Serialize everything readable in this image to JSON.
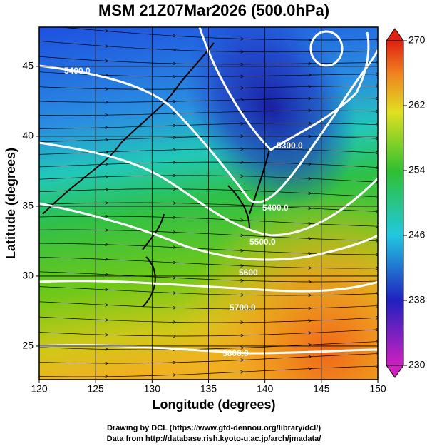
{
  "chart_data": {
    "type": "map",
    "title": "MSM 21Z07Mar2026 (500.0hPa)",
    "x_label": "Longitude (degrees)",
    "y_label": "Latitude  (degrees)",
    "xlim": [
      120,
      150
    ],
    "xticks": [
      120,
      125,
      130,
      135,
      140,
      145,
      150
    ],
    "ylim": [
      22.6,
      47.8
    ],
    "yticks": [
      25,
      30,
      35,
      40,
      45
    ],
    "grid": true,
    "colorbar": {
      "lim": [
        230,
        270
      ],
      "ticks": [
        230,
        238,
        246,
        254,
        262,
        270
      ]
    },
    "contour_labels": [
      "5400.0",
      "5300.0",
      "5400.0",
      "5500.0",
      "5600",
      "5700.0",
      "5800.0"
    ],
    "footer": [
      "Drawing by DCL (https://www.gfd-dennou.org/library/dcl/)",
      "Data from http://database.rish.kyoto-u.ac.jp/arch/jmadata/"
    ]
  }
}
